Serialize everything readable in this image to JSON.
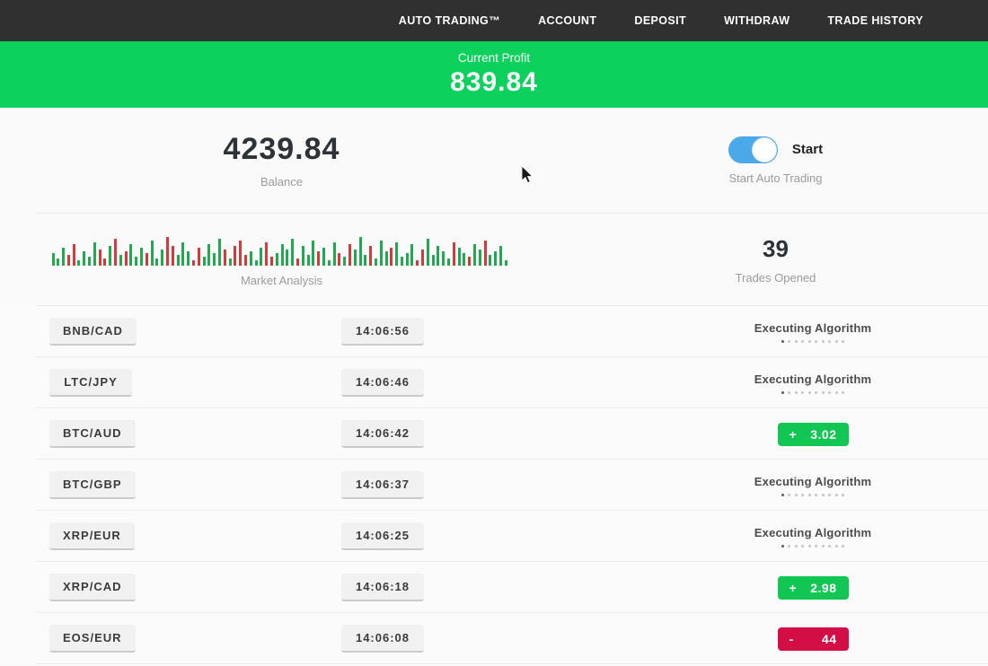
{
  "nav": {
    "items": [
      {
        "label": "AUTO TRADING™"
      },
      {
        "label": "ACCOUNT"
      },
      {
        "label": "DEPOSIT"
      },
      {
        "label": "WITHDRAW"
      },
      {
        "label": "TRADE HISTORY"
      }
    ]
  },
  "profit_banner": {
    "label": "Current Profit",
    "value": "839.84"
  },
  "account": {
    "balance": "4239.84",
    "balance_label": "Balance",
    "toggle_label": "Start",
    "toggle_sublabel": "Start Auto Trading",
    "toggle_on": true
  },
  "market": {
    "chart_label": "Market Analysis",
    "trades_opened": "39",
    "trades_opened_label": "Trades Opened"
  },
  "chart_data": {
    "type": "bar",
    "title": "Market Analysis",
    "note": "decorative market-activity candlestick-style bars; heights in px, color g=green (up) r=red (down)",
    "bar_colors": {
      "g": "#21a850",
      "r": "#d23b3b"
    },
    "bars": "g14 g8 g20 r12 r24 g6 g16 g10 g26 r18 r8 g22 r30 g12 r16 g24 g10 g20 r14 g28 g8 g18 r32 r22 g12 g26 g16 r6 r20 g10 g24 g14 g30 r18 g8 r22 r28 r12 g16 g6 g20 r26 r10 g14 g24 g18 g30 r8 g22 g12 g28 r16 g20 g6 g26 r14 g10 r24 g18 g32 g12 r22 g8 g28 g16 r20 g26 g10 g14 g24 r6 r18 g30 g12 g22 g16 g8 r26 g20 g14 r10 g24 g18 r28 g12 g16 g22 g6"
  },
  "trades": [
    {
      "pair": "BNB/CAD",
      "time": "14:06:56",
      "status": "executing"
    },
    {
      "pair": "LTC/JPY",
      "time": "14:06:46",
      "status": "executing"
    },
    {
      "pair": "BTC/AUD",
      "time": "14:06:42",
      "status": "profit",
      "sign": "+",
      "amount": "3.02"
    },
    {
      "pair": "BTC/GBP",
      "time": "14:06:37",
      "status": "executing"
    },
    {
      "pair": "XRP/EUR",
      "time": "14:06:25",
      "status": "executing"
    },
    {
      "pair": "XRP/CAD",
      "time": "14:06:18",
      "status": "profit",
      "sign": "+",
      "amount": "2.98"
    },
    {
      "pair": "EOS/EUR",
      "time": "14:06:08",
      "status": "loss",
      "sign": "-",
      "amount": "44"
    }
  ],
  "status_labels": {
    "executing": "Executing Algorithm",
    "executing_dots": 10
  },
  "colors": {
    "nav_bg": "#303030",
    "green_banner": "#0cd15c",
    "green_badge": "#12c653",
    "red_badge": "#d30d45",
    "toggle_blue": "#4aa9e9"
  }
}
